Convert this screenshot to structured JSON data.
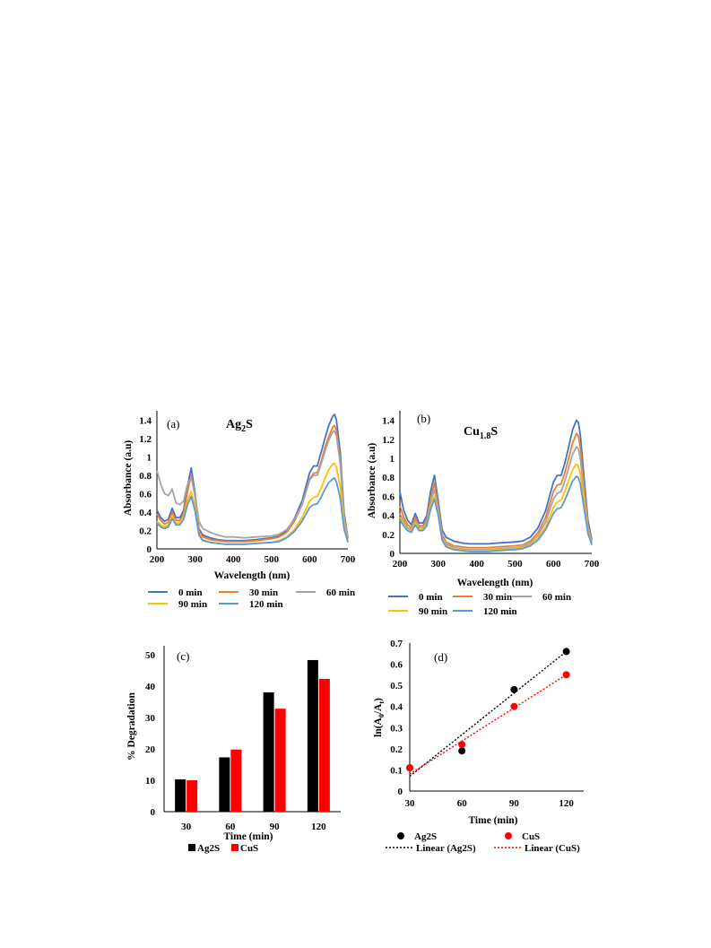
{
  "chart_data": [
    {
      "type": "line",
      "panel_label": "(a)",
      "title": {
        "main": "Ag",
        "sub": "2",
        "tail": "S"
      },
      "xlabel": "Wavelength (nm)",
      "ylabel": "Absorbance (a.u)",
      "xlim": [
        200,
        700
      ],
      "ylim": [
        0,
        1.5
      ],
      "xticks": [
        "200",
        "300",
        "400",
        "500",
        "600",
        "700"
      ],
      "yticks": [
        "0",
        "0.2",
        "0.4",
        "0.6",
        "0.8",
        "1",
        "1.2",
        "1.4"
      ],
      "x": [
        200,
        210,
        220,
        230,
        240,
        250,
        260,
        270,
        280,
        290,
        300,
        310,
        320,
        340,
        360,
        380,
        400,
        430,
        460,
        500,
        520,
        540,
        560,
        580,
        600,
        610,
        620,
        630,
        640,
        650,
        660,
        665,
        670,
        680,
        690,
        700
      ],
      "series": [
        {
          "name": "0 min",
          "color": "#4472C4",
          "values": [
            0.42,
            0.34,
            0.3,
            0.32,
            0.44,
            0.34,
            0.34,
            0.42,
            0.68,
            0.88,
            0.6,
            0.22,
            0.15,
            0.12,
            0.1,
            0.09,
            0.09,
            0.09,
            0.1,
            0.12,
            0.14,
            0.2,
            0.33,
            0.52,
            0.83,
            0.9,
            0.9,
            1.05,
            1.2,
            1.34,
            1.44,
            1.46,
            1.4,
            1.05,
            0.4,
            0.12
          ]
        },
        {
          "name": "30 min",
          "color": "#ED7D31",
          "values": [
            0.38,
            0.31,
            0.27,
            0.29,
            0.4,
            0.31,
            0.31,
            0.38,
            0.62,
            0.8,
            0.56,
            0.2,
            0.13,
            0.1,
            0.09,
            0.08,
            0.08,
            0.08,
            0.09,
            0.11,
            0.13,
            0.18,
            0.3,
            0.48,
            0.76,
            0.82,
            0.83,
            0.95,
            1.1,
            1.22,
            1.32,
            1.34,
            1.29,
            0.96,
            0.36,
            0.11
          ]
        },
        {
          "name": "60 min",
          "color": "#A5A5A5",
          "values": [
            0.85,
            0.7,
            0.6,
            0.58,
            0.65,
            0.5,
            0.48,
            0.52,
            0.7,
            0.78,
            0.58,
            0.3,
            0.22,
            0.18,
            0.15,
            0.13,
            0.13,
            0.12,
            0.13,
            0.14,
            0.16,
            0.21,
            0.32,
            0.48,
            0.75,
            0.8,
            0.8,
            0.92,
            1.06,
            1.18,
            1.27,
            1.28,
            1.23,
            0.92,
            0.35,
            0.12
          ]
        },
        {
          "name": "90 min",
          "color": "#FFC000",
          "values": [
            0.3,
            0.26,
            0.24,
            0.26,
            0.36,
            0.28,
            0.28,
            0.34,
            0.52,
            0.62,
            0.45,
            0.16,
            0.1,
            0.07,
            0.06,
            0.05,
            0.05,
            0.05,
            0.06,
            0.07,
            0.09,
            0.13,
            0.21,
            0.34,
            0.52,
            0.56,
            0.57,
            0.66,
            0.77,
            0.86,
            0.92,
            0.93,
            0.89,
            0.67,
            0.26,
            0.08
          ]
        },
        {
          "name": "120 min",
          "color": "#5B9BD5",
          "values": [
            0.28,
            0.24,
            0.22,
            0.24,
            0.33,
            0.26,
            0.26,
            0.32,
            0.48,
            0.57,
            0.41,
            0.15,
            0.09,
            0.07,
            0.06,
            0.05,
            0.05,
            0.05,
            0.06,
            0.07,
            0.08,
            0.12,
            0.19,
            0.3,
            0.45,
            0.48,
            0.49,
            0.56,
            0.65,
            0.72,
            0.76,
            0.77,
            0.73,
            0.55,
            0.22,
            0.07
          ]
        }
      ]
    },
    {
      "type": "line",
      "panel_label": "(b)",
      "title": {
        "main": "Cu",
        "sub": "1.8",
        "tail": "S"
      },
      "xlabel": "Wavelength (nm)",
      "ylabel": "Absorbance (a.u)",
      "xlim": [
        200,
        700
      ],
      "ylim": [
        0,
        1.5
      ],
      "xticks": [
        "200",
        "300",
        "400",
        "500",
        "600",
        "700"
      ],
      "yticks": [
        "0",
        "0.2",
        "0.4",
        "0.6",
        "0.8",
        "1",
        "1.2",
        "1.4"
      ],
      "x": [
        200,
        210,
        220,
        230,
        240,
        250,
        260,
        270,
        280,
        290,
        300,
        310,
        320,
        340,
        360,
        380,
        400,
        430,
        460,
        500,
        520,
        540,
        560,
        580,
        600,
        610,
        620,
        630,
        640,
        650,
        660,
        665,
        670,
        680,
        690,
        700
      ],
      "series": [
        {
          "name": "0 min",
          "color": "#4472C4",
          "values": [
            0.65,
            0.45,
            0.35,
            0.3,
            0.42,
            0.32,
            0.32,
            0.4,
            0.65,
            0.82,
            0.55,
            0.25,
            0.17,
            0.13,
            0.11,
            0.1,
            0.1,
            0.1,
            0.11,
            0.12,
            0.13,
            0.17,
            0.27,
            0.45,
            0.75,
            0.82,
            0.82,
            0.95,
            1.12,
            1.3,
            1.4,
            1.38,
            1.25,
            0.8,
            0.35,
            0.14
          ]
        },
        {
          "name": "30 min",
          "color": "#ED7D31",
          "values": [
            0.5,
            0.38,
            0.3,
            0.27,
            0.38,
            0.29,
            0.29,
            0.36,
            0.58,
            0.74,
            0.5,
            0.2,
            0.12,
            0.08,
            0.07,
            0.06,
            0.06,
            0.06,
            0.07,
            0.08,
            0.09,
            0.13,
            0.22,
            0.38,
            0.65,
            0.72,
            0.73,
            0.85,
            1.0,
            1.16,
            1.26,
            1.24,
            1.12,
            0.72,
            0.3,
            0.12
          ]
        },
        {
          "name": "60 min",
          "color": "#A5A5A5",
          "values": [
            0.42,
            0.34,
            0.27,
            0.25,
            0.35,
            0.27,
            0.27,
            0.33,
            0.53,
            0.67,
            0.46,
            0.17,
            0.1,
            0.06,
            0.05,
            0.04,
            0.04,
            0.04,
            0.05,
            0.06,
            0.07,
            0.11,
            0.19,
            0.33,
            0.57,
            0.63,
            0.65,
            0.76,
            0.9,
            1.04,
            1.12,
            1.1,
            1.0,
            0.64,
            0.27,
            0.11
          ]
        },
        {
          "name": "90 min",
          "color": "#FFC000",
          "values": [
            0.38,
            0.31,
            0.25,
            0.23,
            0.32,
            0.25,
            0.25,
            0.3,
            0.48,
            0.6,
            0.42,
            0.15,
            0.08,
            0.05,
            0.04,
            0.03,
            0.03,
            0.03,
            0.04,
            0.05,
            0.06,
            0.09,
            0.16,
            0.28,
            0.48,
            0.54,
            0.56,
            0.65,
            0.77,
            0.88,
            0.94,
            0.92,
            0.84,
            0.55,
            0.23,
            0.1
          ]
        },
        {
          "name": "120 min",
          "color": "#5B9BD5",
          "values": [
            0.35,
            0.29,
            0.24,
            0.22,
            0.3,
            0.24,
            0.24,
            0.29,
            0.46,
            0.57,
            0.4,
            0.14,
            0.07,
            0.04,
            0.03,
            0.02,
            0.02,
            0.02,
            0.03,
            0.04,
            0.05,
            0.08,
            0.14,
            0.25,
            0.42,
            0.47,
            0.48,
            0.56,
            0.66,
            0.76,
            0.81,
            0.8,
            0.73,
            0.48,
            0.21,
            0.09
          ]
        }
      ]
    },
    {
      "type": "bar",
      "panel_label": "(c)",
      "xlabel": "Time (min)",
      "ylabel": "% Degradation",
      "categories": [
        "30",
        "60",
        "90",
        "120"
      ],
      "ylim": [
        0,
        50
      ],
      "yticks": [
        "0",
        "10",
        "20",
        "30",
        "40",
        "50"
      ],
      "series": [
        {
          "name": "Ag2S",
          "color": "#000000",
          "values": [
            10.3,
            17.3,
            38.0,
            48.3
          ]
        },
        {
          "name": "CuS",
          "color": "#FF0000",
          "values": [
            10.0,
            19.8,
            32.8,
            42.3
          ]
        }
      ]
    },
    {
      "type": "scatter",
      "panel_label": "(d)",
      "xlabel": "Time (min)",
      "ylabel": {
        "pre": "ln(A",
        "sub1": "0",
        "mid": "/A",
        "sub2": "t",
        "post": ")"
      },
      "xlim": [
        30,
        130
      ],
      "ylim": [
        0,
        0.7
      ],
      "xticks": [
        "30",
        "60",
        "90",
        "120"
      ],
      "yticks": [
        "0",
        "0.1",
        "0.2",
        "0.3",
        "0.4",
        "0.5",
        "0.6",
        "0.7"
      ],
      "series": [
        {
          "name": "Ag2S",
          "color": "#000000",
          "x": [
            30,
            60,
            90,
            120
          ],
          "y": [
            0.11,
            0.19,
            0.48,
            0.66
          ]
        },
        {
          "name": "CuS",
          "color": "#FF0000",
          "x": [
            30,
            60,
            90,
            120
          ],
          "y": [
            0.11,
            0.22,
            0.4,
            0.55
          ]
        }
      ],
      "trendlines": [
        {
          "name": "Linear (Ag2S)",
          "color": "#000000",
          "x": [
            30,
            120
          ],
          "y": [
            0.07,
            0.66
          ]
        },
        {
          "name": "Linear (CuS)",
          "color": "#FF0000",
          "x": [
            30,
            120
          ],
          "y": [
            0.08,
            0.55
          ]
        }
      ]
    }
  ]
}
